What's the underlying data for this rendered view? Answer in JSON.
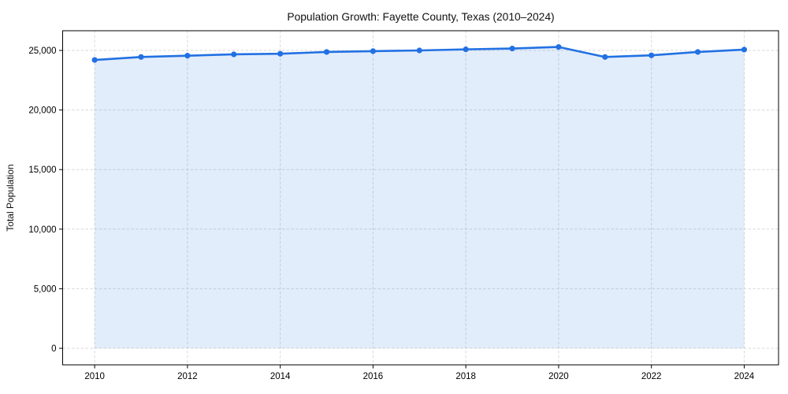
{
  "chart_data": {
    "type": "line",
    "title": "Population Growth: Fayette County, Texas (2010–2024)",
    "xlabel": "",
    "ylabel": "Total Population",
    "series_name": "Total Population",
    "x": [
      2010,
      2011,
      2012,
      2013,
      2014,
      2015,
      2016,
      2017,
      2018,
      2019,
      2020,
      2021,
      2022,
      2023,
      2024
    ],
    "values": [
      24200,
      24450,
      24560,
      24670,
      24720,
      24870,
      24940,
      25000,
      25090,
      25160,
      25290,
      24450,
      24590,
      24870,
      25070
    ],
    "x_ticks": [
      {
        "value": 2010,
        "label": "2010"
      },
      {
        "value": 2012,
        "label": "2012"
      },
      {
        "value": 2014,
        "label": "2014"
      },
      {
        "value": 2016,
        "label": "2016"
      },
      {
        "value": 2018,
        "label": "2018"
      },
      {
        "value": 2020,
        "label": "2020"
      },
      {
        "value": 2022,
        "label": "2022"
      },
      {
        "value": 2024,
        "label": "2024"
      }
    ],
    "y_ticks": [
      {
        "value": 0,
        "label": "0"
      },
      {
        "value": 5000,
        "label": "5,000"
      },
      {
        "value": 10000,
        "label": "10,000"
      },
      {
        "value": 15000,
        "label": "15,000"
      },
      {
        "value": 20000,
        "label": "20,000"
      },
      {
        "value": 25000,
        "label": "25,000"
      }
    ],
    "xlim": [
      2009.31,
      2024.74
    ],
    "ylim": [
      -1389,
      26653
    ],
    "grid": true,
    "legend": null,
    "marker": "circle",
    "fill_to_zero": true,
    "colors": {
      "line": "#2271e3",
      "fill": "rgba(34,113,227,0.13)",
      "grid": "#d9d9d9",
      "axis": "#000000",
      "text": "#000000"
    }
  }
}
